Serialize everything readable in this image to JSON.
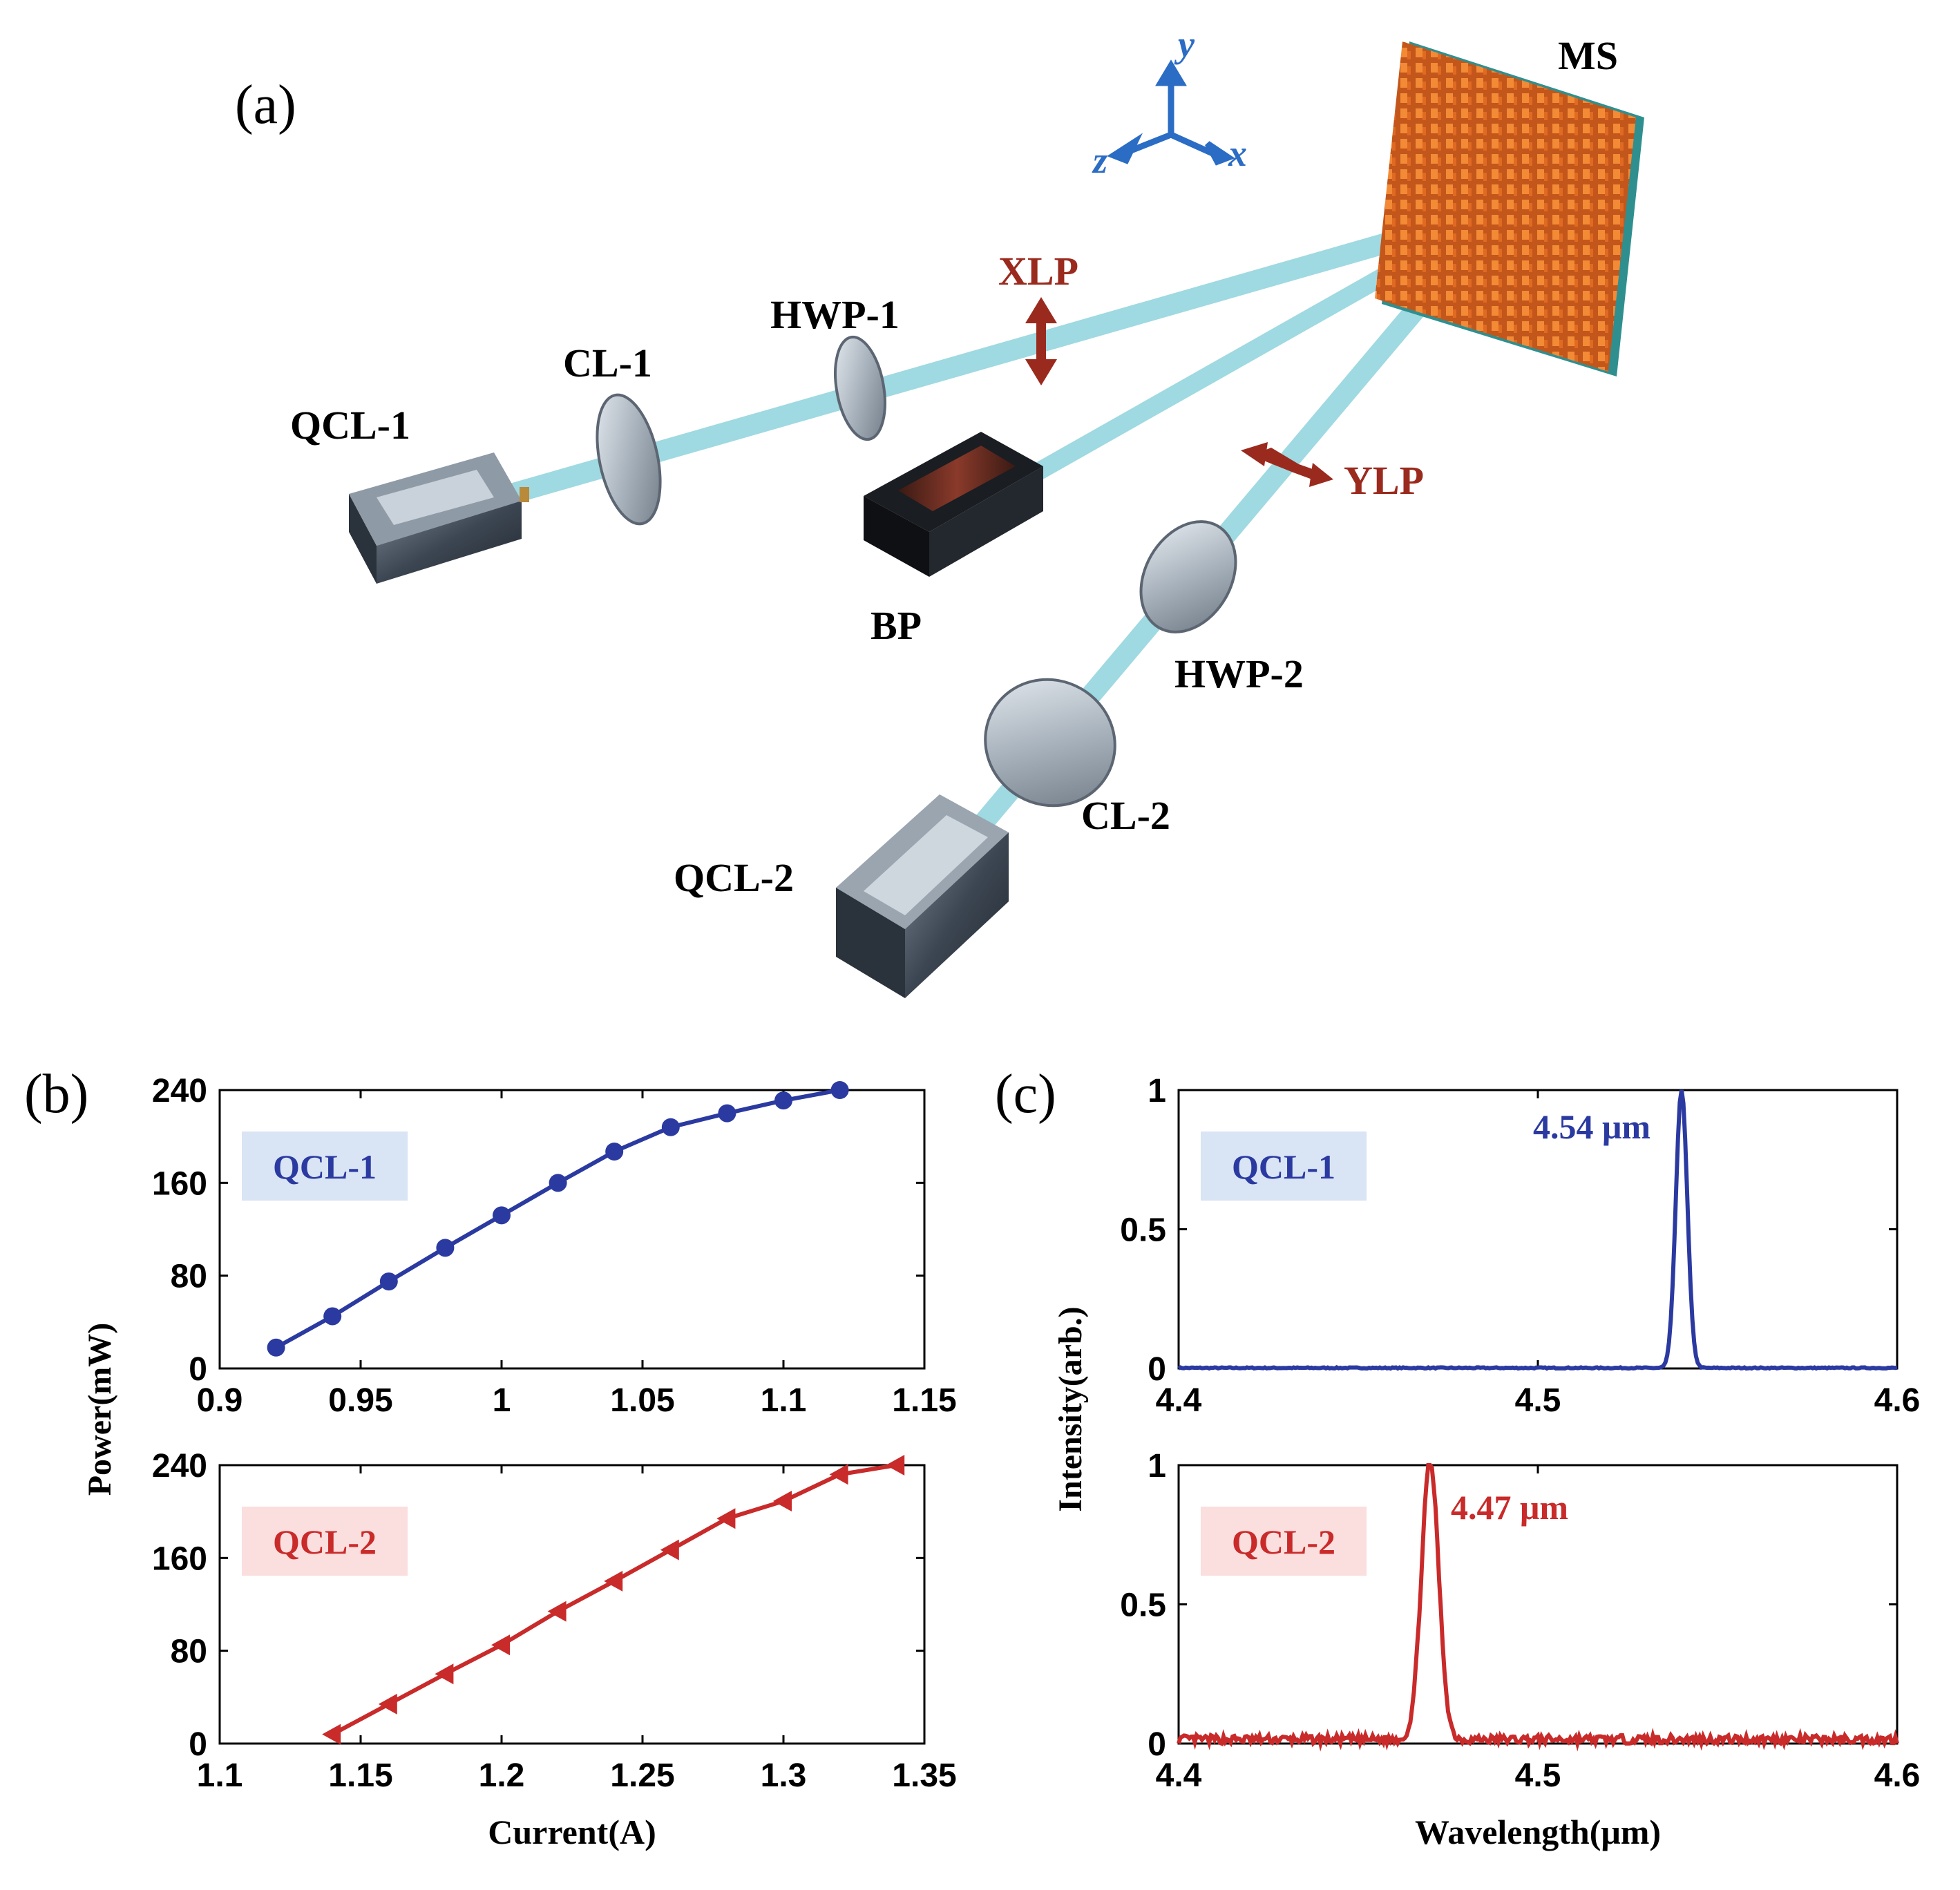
{
  "figure": {
    "panel_a": {
      "letter": "(a)",
      "labels": {
        "ms": "MS",
        "xlp": "XLP",
        "ylp": "YLP",
        "hwp1": "HWP-1",
        "hwp2": "HWP-2",
        "cl1": "CL-1",
        "cl2": "CL-2",
        "qcl1": "QCL-1",
        "qcl2": "QCL-2",
        "bp": "BP"
      },
      "axes": {
        "x": "x",
        "y": "y",
        "z": "z"
      },
      "colors": {
        "beam": "#8fd3dc",
        "metasurface": "#f07a2a",
        "substrate": "#2f8f8f",
        "polarization_arrow": "#9b2a1e",
        "axis_triad": "#2b6cc4",
        "device_body": "#4a5562"
      }
    },
    "panel_b": {
      "letter": "(b)"
    },
    "panel_c": {
      "letter": "(c)"
    }
  },
  "chart_data": [
    {
      "id": "b-top",
      "type": "line",
      "legend_box": "QCL-1",
      "color": "#2b3aa0",
      "legend_bg": "#d9e4f4",
      "marker": "circle",
      "x": [
        0.92,
        0.94,
        0.96,
        0.98,
        1.0,
        1.02,
        1.04,
        1.06,
        1.08,
        1.1,
        1.12
      ],
      "y": [
        18,
        45,
        75,
        104,
        132,
        160,
        187,
        208,
        220,
        231,
        240
      ],
      "xlim": [
        0.9,
        1.15
      ],
      "ylim": [
        0,
        240
      ],
      "xticks": [
        "0.9",
        "0.95",
        "1",
        "1.05",
        "1.1",
        "1.15"
      ],
      "yticks": [
        "0",
        "80",
        "160",
        "240"
      ]
    },
    {
      "id": "b-bottom",
      "type": "line",
      "legend_box": "QCL-2",
      "color": "#c92a2a",
      "legend_bg": "#fbdede",
      "marker": "triangle-left",
      "x": [
        1.14,
        1.16,
        1.18,
        1.2,
        1.22,
        1.24,
        1.26,
        1.28,
        1.3,
        1.32,
        1.34
      ],
      "y": [
        8,
        34,
        60,
        85,
        114,
        140,
        167,
        194,
        209,
        232,
        240
      ],
      "xlim": [
        1.1,
        1.35
      ],
      "ylim": [
        0,
        240
      ],
      "xticks": [
        "1.1",
        "1.15",
        "1.2",
        "1.25",
        "1.3",
        "1.35"
      ],
      "yticks": [
        "0",
        "80",
        "160",
        "240"
      ],
      "xlabel": "Current(A)"
    },
    {
      "id": "c-top",
      "type": "line",
      "legend_box": "QCL-1",
      "color": "#2b3aa0",
      "legend_bg": "#d9e4f4",
      "peak_label": "4.54 μm",
      "peak_x": 4.54,
      "peak_width": 0.0016,
      "noise": 0.004,
      "xlim": [
        4.4,
        4.6
      ],
      "ylim": [
        0,
        1
      ],
      "xticks": [
        "4.4",
        "4.5",
        "4.6"
      ],
      "yticks": [
        "0",
        "0.5",
        "1"
      ]
    },
    {
      "id": "c-bottom",
      "type": "line",
      "legend_box": "QCL-2",
      "color": "#c92a2a",
      "legend_bg": "#fbdede",
      "peak_label": "4.47 μm",
      "peak_x": 4.47,
      "peak_width": 0.0024,
      "noise": 0.03,
      "xlim": [
        4.4,
        4.6
      ],
      "ylim": [
        0,
        1
      ],
      "xticks": [
        "4.4",
        "4.5",
        "4.6"
      ],
      "yticks": [
        "0",
        "0.5",
        "1"
      ],
      "xlabel": "Wavelength(μm)"
    }
  ],
  "shared_labels": {
    "b_ylabel": "Power(mW)",
    "c_ylabel": "Intensity(arb.)"
  }
}
